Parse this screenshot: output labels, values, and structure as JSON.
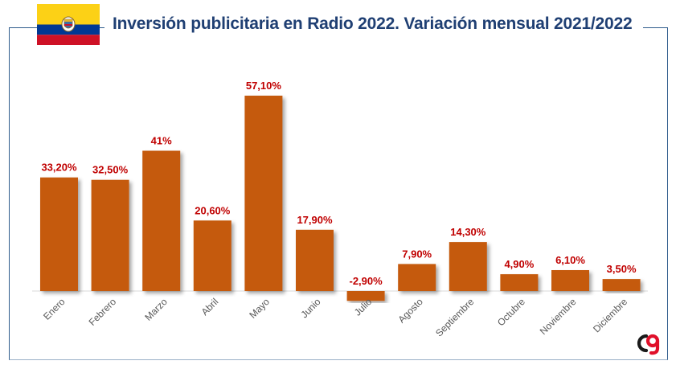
{
  "header": {
    "title": "Inversión publicitaria en Radio 2022. Variación mensual 2021/2022"
  },
  "flag": {
    "icon": "colombia-flag-icon",
    "colors": [
      "#FCD116",
      "#003893",
      "#CE1126"
    ]
  },
  "logo": {
    "icon": "brand-logo-icon",
    "colors": [
      "#1a1a1a",
      "#e0102a"
    ]
  },
  "chart_data": {
    "type": "bar",
    "categories": [
      "Enero",
      "Febrero",
      "Marzo",
      "Abril",
      "Mayo",
      "Junio",
      "Julio",
      "Agosto",
      "Septiembre",
      "Octubre",
      "Noviembre",
      "Diciembre"
    ],
    "values": [
      33.2,
      32.5,
      41,
      20.6,
      57.1,
      17.9,
      -2.9,
      7.9,
      14.3,
      4.9,
      6.1,
      3.5
    ],
    "labels": [
      "33,20%",
      "32,50%",
      "41%",
      "20,60%",
      "57,10%",
      "17,90%",
      "-2,90%",
      "7,90%",
      "14,30%",
      "4,90%",
      "6,10%",
      "3,50%"
    ],
    "bar_color": "#c55a11",
    "label_color": "#c00000",
    "ylim": [
      -2.9,
      57.1
    ],
    "grid": false,
    "legend": "none"
  }
}
